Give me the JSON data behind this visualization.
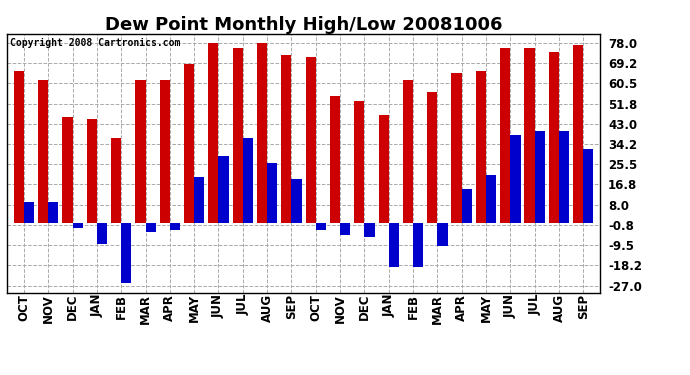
{
  "title": "Dew Point Monthly High/Low 20081006",
  "copyright": "Copyright 2008 Cartronics.com",
  "categories": [
    "OCT",
    "NOV",
    "DEC",
    "JAN",
    "FEB",
    "MAR",
    "APR",
    "MAY",
    "JUN",
    "JUL",
    "AUG",
    "SEP",
    "OCT",
    "NOV",
    "DEC",
    "JAN",
    "FEB",
    "MAR",
    "APR",
    "MAY",
    "JUN",
    "JUL",
    "AUG",
    "SEP"
  ],
  "highs": [
    66,
    62,
    46,
    45,
    37,
    62,
    62,
    69,
    78,
    76,
    78,
    73,
    72,
    55,
    53,
    47,
    62,
    57,
    65,
    66,
    76,
    76,
    74,
    77
  ],
  "lows": [
    9,
    9,
    -2,
    -9,
    -26,
    -4,
    -3,
    20,
    29,
    37,
    26,
    19,
    -3,
    -5,
    -6,
    -19,
    -19,
    -10,
    15,
    21,
    38,
    40,
    40,
    32
  ],
  "bar_color_high": "#cc0000",
  "bar_color_low": "#0000cc",
  "background_color": "#ffffff",
  "grid_color": "#aaaaaa",
  "yticks": [
    -27.0,
    -18.2,
    -9.5,
    -0.8,
    8.0,
    16.8,
    25.5,
    34.2,
    43.0,
    51.8,
    60.5,
    69.2,
    78.0
  ],
  "ylim": [
    -30,
    82
  ],
  "bar_width": 0.42,
  "title_fontsize": 13,
  "tick_fontsize": 8.5,
  "copyright_fontsize": 7
}
